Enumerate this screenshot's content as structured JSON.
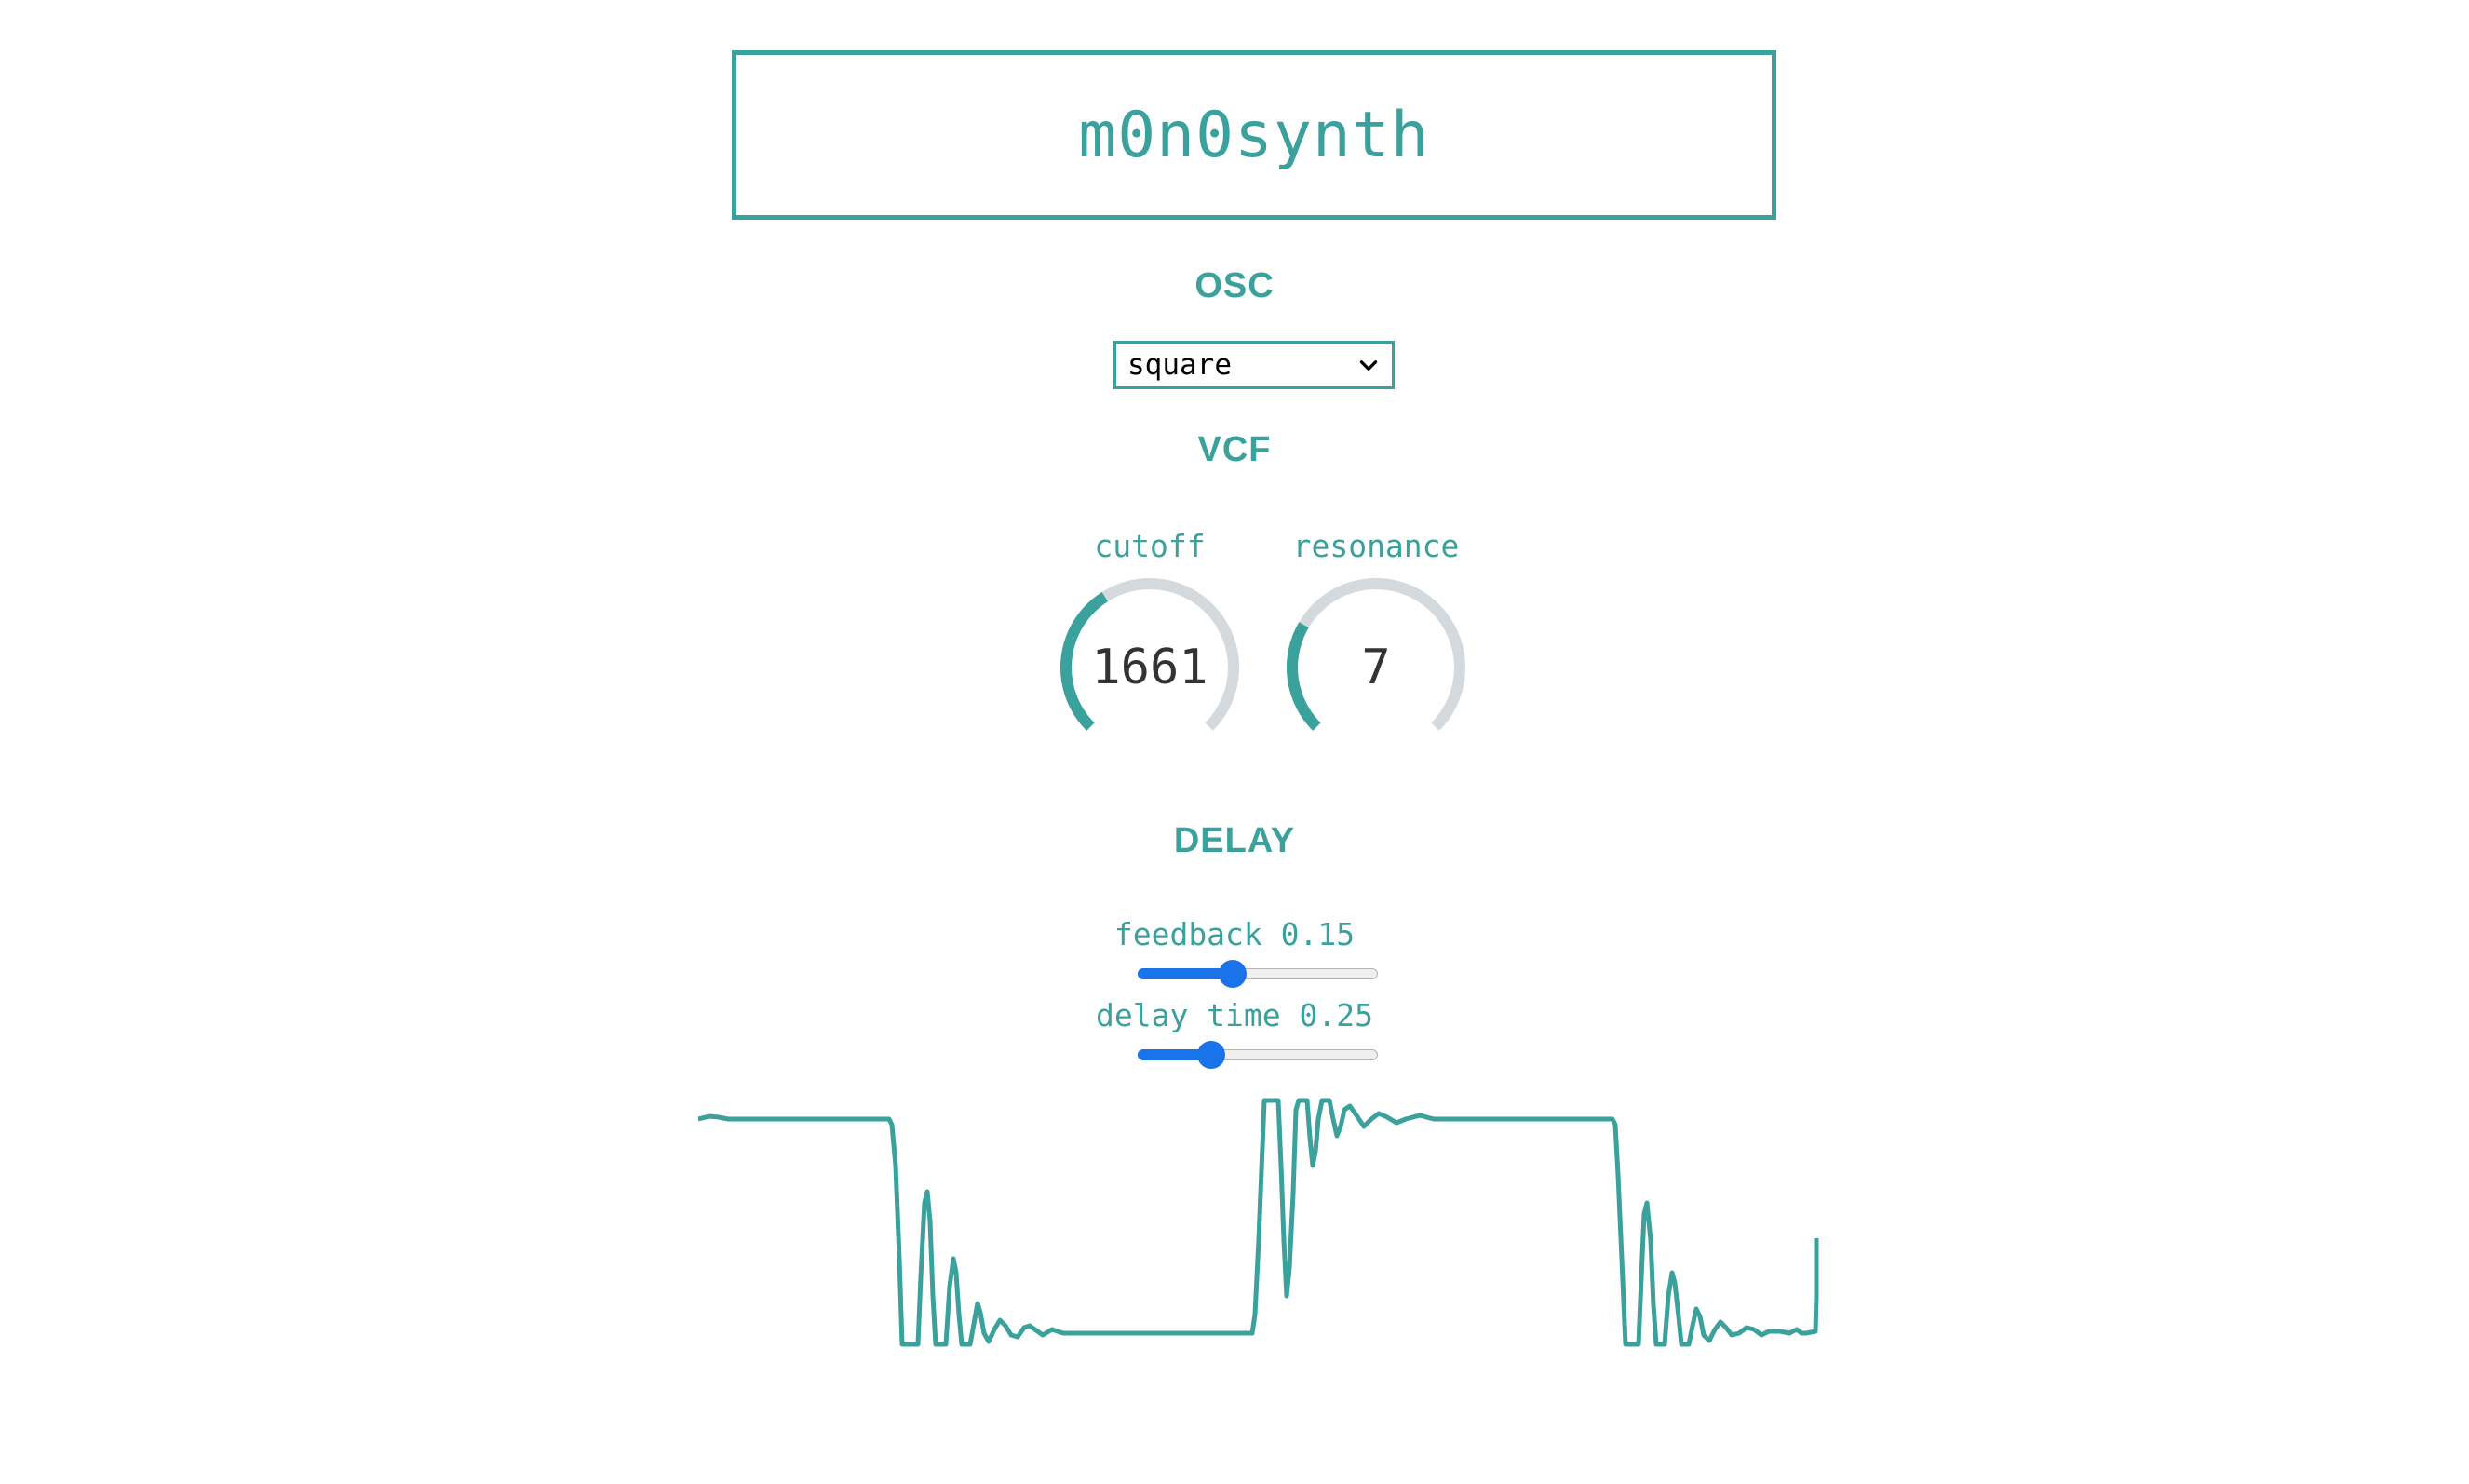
{
  "app": {
    "title": "m0n0synth"
  },
  "osc": {
    "heading": "OSC",
    "waveform_selected": "square"
  },
  "vcf": {
    "heading": "VCF",
    "cutoff": {
      "label": "cutoff",
      "value": "1661",
      "fraction": 0.38
    },
    "resonance": {
      "label": "resonance",
      "value": "7",
      "fraction": 0.28
    }
  },
  "delay": {
    "heading": "DELAY",
    "feedback": {
      "label": "feedback",
      "value": "0.15",
      "fraction": 0.38
    },
    "delay_time": {
      "label": "delay time",
      "value": "0.25",
      "fraction": 0.28
    }
  },
  "colors": {
    "accent": "#3aa19c",
    "knob_track": "#d3d9dd",
    "slider_accent": "#1a73e8",
    "text_dark": "#333333"
  },
  "icons": {
    "select_chevron": "chevron-down-icon"
  }
}
